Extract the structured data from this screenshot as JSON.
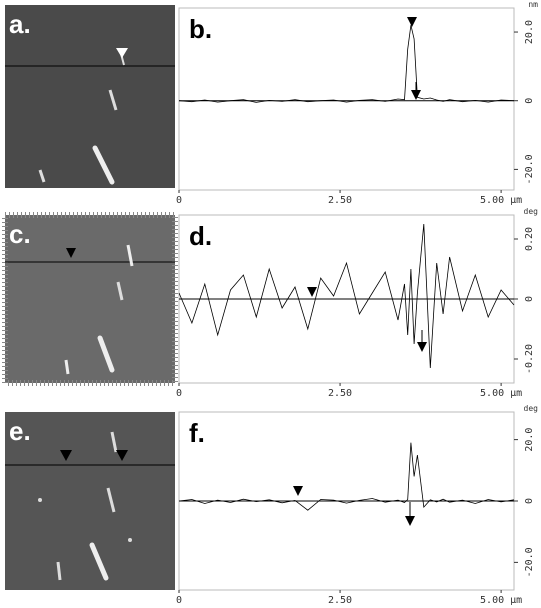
{
  "images": [
    {
      "label": "a."
    },
    {
      "label": "c."
    },
    {
      "label": "e."
    }
  ],
  "chart_data": [
    {
      "type": "line",
      "panel_label": "b.",
      "unit_label": "nm",
      "x": [
        0,
        0.2,
        0.4,
        0.6,
        0.8,
        1.0,
        1.2,
        1.4,
        1.6,
        1.8,
        2.0,
        2.2,
        2.4,
        2.6,
        2.8,
        3.0,
        3.2,
        3.4,
        3.5,
        3.55,
        3.6,
        3.65,
        3.7,
        3.8,
        3.9,
        4.0,
        4.1,
        4.2,
        4.4,
        4.6,
        4.8,
        5.0,
        5.2
      ],
      "series": [
        {
          "color": "#000000",
          "values": [
            0,
            -0.3,
            0.2,
            -0.4,
            0,
            0.3,
            -0.5,
            0.1,
            -0.2,
            0.3,
            -0.3,
            0,
            0.2,
            -0.4,
            0.1,
            0.3,
            -0.2,
            0.5,
            0.3,
            15,
            22,
            18,
            1,
            0.5,
            0.8,
            0.2,
            -0.2,
            0.3,
            -0.3,
            0.1,
            -0.4,
            0.2,
            0
          ]
        }
      ],
      "xlim": [
        0,
        5.2
      ],
      "xticks": [
        0,
        {
          "value": 2.5,
          "label": "2.50"
        },
        {
          "value": 5,
          "label": "5.00 µm"
        }
      ],
      "ylim": [
        -26,
        27
      ],
      "yticks": [
        {
          "value": 20,
          "label": "20.0"
        },
        0,
        {
          "value": -20,
          "label": "-20.0"
        }
      ]
    },
    {
      "type": "line",
      "panel_label": "d.",
      "unit_label": "deg",
      "x": [
        0,
        0.2,
        0.4,
        0.6,
        0.8,
        1.0,
        1.2,
        1.4,
        1.6,
        1.8,
        2.0,
        2.2,
        2.4,
        2.6,
        2.8,
        3.0,
        3.2,
        3.4,
        3.5,
        3.55,
        3.6,
        3.65,
        3.7,
        3.8,
        3.9,
        4.0,
        4.1,
        4.2,
        4.4,
        4.6,
        4.8,
        5.0,
        5.2
      ],
      "series": [
        {
          "color": "#000000",
          "values": [
            0.02,
            -0.08,
            0.05,
            -0.12,
            0.03,
            0.08,
            -0.06,
            0.1,
            -0.03,
            0.04,
            -0.1,
            0.07,
            0.01,
            0.12,
            -0.05,
            0.02,
            0.09,
            -0.07,
            0.05,
            -0.12,
            0.1,
            -0.15,
            0.02,
            0.25,
            -0.23,
            0.12,
            -0.05,
            0.14,
            -0.04,
            0.08,
            -0.06,
            0.03,
            -0.02
          ]
        }
      ],
      "xlim": [
        0,
        5.2
      ],
      "xticks": [
        0,
        {
          "value": 2.5,
          "label": "2.50"
        },
        {
          "value": 5,
          "label": "5.00 µm"
        }
      ],
      "ylim": [
        -0.28,
        0.28
      ],
      "yticks": [
        {
          "value": 0.2,
          "label": "0.20"
        },
        0,
        {
          "value": -0.2,
          "label": "-0.20"
        }
      ]
    },
    {
      "type": "line",
      "panel_label": "f.",
      "unit_label": "deg",
      "x": [
        0,
        0.2,
        0.4,
        0.6,
        0.8,
        1.0,
        1.2,
        1.4,
        1.6,
        1.8,
        2.0,
        2.2,
        2.4,
        2.6,
        2.8,
        3.0,
        3.2,
        3.4,
        3.5,
        3.55,
        3.6,
        3.65,
        3.7,
        3.8,
        3.9,
        4.0,
        4.1,
        4.2,
        4.4,
        4.6,
        4.8,
        5.0,
        5.2
      ],
      "series": [
        {
          "color": "#000000",
          "values": [
            0,
            0.5,
            -0.8,
            0.3,
            -0.5,
            0.6,
            -0.2,
            0.4,
            -0.6,
            0.2,
            -3,
            0.5,
            0.3,
            -0.7,
            0.2,
            0.8,
            -0.4,
            0.3,
            -0.5,
            0.5,
            19,
            8,
            15,
            -2,
            0.4,
            -0.3,
            0.6,
            -0.4,
            0.3,
            -0.8,
            0.5,
            -0.3,
            0.4
          ]
        }
      ],
      "xlim": [
        0,
        5.2
      ],
      "xticks": [
        0,
        {
          "value": 2.5,
          "label": "2.50"
        },
        {
          "value": 5,
          "label": "5.00 µm"
        }
      ],
      "ylim": [
        -29,
        29
      ],
      "yticks": [
        {
          "value": 20,
          "label": "20.0"
        },
        0,
        {
          "value": -20,
          "label": "-20.0"
        }
      ]
    }
  ]
}
